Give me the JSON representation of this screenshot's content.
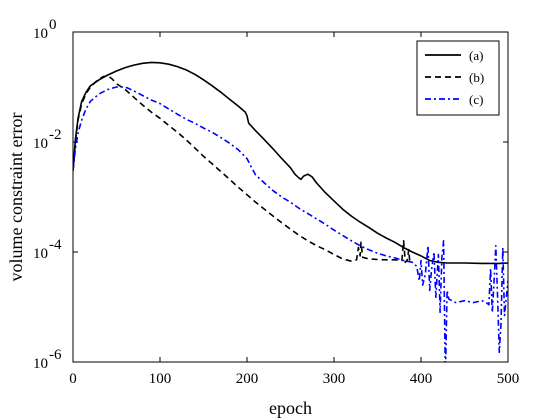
{
  "chart_data": {
    "type": "line",
    "xlabel": "epoch",
    "ylabel": "volume constraint error",
    "xscale": "linear",
    "yscale": "log",
    "xlim": [
      0,
      500
    ],
    "ylim": [
      1e-06,
      1
    ],
    "xticks": [
      0,
      100,
      200,
      300,
      400,
      500
    ],
    "yticks": [
      {
        "value": 1e-06,
        "base": "10",
        "exp": "-6"
      },
      {
        "value": 0.0001,
        "base": "10",
        "exp": "-4"
      },
      {
        "value": 0.01,
        "base": "10",
        "exp": "-2"
      },
      {
        "value": 1,
        "base": "10",
        "exp": "0"
      }
    ],
    "grid": false,
    "legend_position": "top-right",
    "series": [
      {
        "name": "(a)",
        "color": "#000000",
        "dash": "solid",
        "points": [
          [
            0,
            0.003
          ],
          [
            3,
            0.012
          ],
          [
            6,
            0.028
          ],
          [
            10,
            0.055
          ],
          [
            15,
            0.08
          ],
          [
            20,
            0.105
          ],
          [
            30,
            0.135
          ],
          [
            40,
            0.165
          ],
          [
            50,
            0.195
          ],
          [
            60,
            0.225
          ],
          [
            70,
            0.25
          ],
          [
            80,
            0.27
          ],
          [
            90,
            0.28
          ],
          [
            100,
            0.275
          ],
          [
            110,
            0.26
          ],
          [
            120,
            0.235
          ],
          [
            130,
            0.205
          ],
          [
            140,
            0.17
          ],
          [
            150,
            0.135
          ],
          [
            160,
            0.105
          ],
          [
            170,
            0.08
          ],
          [
            180,
            0.06
          ],
          [
            190,
            0.045
          ],
          [
            198,
            0.035
          ],
          [
            200,
            0.03
          ],
          [
            202,
            0.022
          ],
          [
            210,
            0.016
          ],
          [
            220,
            0.011
          ],
          [
            230,
            0.0075
          ],
          [
            240,
            0.005
          ],
          [
            250,
            0.0034
          ],
          [
            255,
            0.0026
          ],
          [
            260,
            0.0022
          ],
          [
            262,
            0.0021
          ],
          [
            265,
            0.0024
          ],
          [
            270,
            0.0026
          ],
          [
            275,
            0.0023
          ],
          [
            280,
            0.0018
          ],
          [
            290,
            0.0012
          ],
          [
            300,
            0.00085
          ],
          [
            310,
            0.0006
          ],
          [
            320,
            0.00045
          ],
          [
            330,
            0.00035
          ],
          [
            340,
            0.00028
          ],
          [
            350,
            0.00022
          ],
          [
            360,
            0.00018
          ],
          [
            370,
            0.00015
          ],
          [
            380,
            0.00012
          ],
          [
            390,
            0.0001
          ],
          [
            400,
            8.5e-05
          ],
          [
            410,
            7e-05
          ],
          [
            420,
            6.5e-05
          ],
          [
            430,
            6.3e-05
          ],
          [
            450,
            6.3e-05
          ],
          [
            470,
            6.2e-05
          ],
          [
            490,
            6.2e-05
          ],
          [
            500,
            6.3e-05
          ]
        ]
      },
      {
        "name": "(b)",
        "color": "#000000",
        "dash": "dashed",
        "points": [
          [
            0,
            0.003
          ],
          [
            3,
            0.011
          ],
          [
            6,
            0.026
          ],
          [
            10,
            0.05
          ],
          [
            15,
            0.075
          ],
          [
            20,
            0.1
          ],
          [
            25,
            0.12
          ],
          [
            30,
            0.14
          ],
          [
            35,
            0.155
          ],
          [
            40,
            0.16
          ],
          [
            45,
            0.14
          ],
          [
            50,
            0.115
          ],
          [
            60,
            0.09
          ],
          [
            70,
            0.065
          ],
          [
            80,
            0.047
          ],
          [
            90,
            0.035
          ],
          [
            100,
            0.027
          ],
          [
            110,
            0.02
          ],
          [
            120,
            0.015
          ],
          [
            130,
            0.011
          ],
          [
            140,
            0.0078
          ],
          [
            150,
            0.0055
          ],
          [
            160,
            0.004
          ],
          [
            170,
            0.0029
          ],
          [
            180,
            0.0021
          ],
          [
            190,
            0.0015
          ],
          [
            200,
            0.0011
          ],
          [
            210,
            0.0008
          ],
          [
            220,
            0.0006
          ],
          [
            230,
            0.00045
          ],
          [
            240,
            0.00034
          ],
          [
            250,
            0.00026
          ],
          [
            260,
            0.0002
          ],
          [
            270,
            0.00016
          ],
          [
            280,
            0.00013
          ],
          [
            290,
            0.00011
          ],
          [
            300,
            9e-05
          ],
          [
            310,
            7.5e-05
          ],
          [
            320,
            6.8e-05
          ],
          [
            326,
            7.2e-05
          ],
          [
            328,
            0.00012
          ],
          [
            330,
            8.5e-05
          ],
          [
            331,
            0.00015
          ],
          [
            333,
            8e-05
          ],
          [
            340,
            7.5e-05
          ],
          [
            350,
            7.3e-05
          ],
          [
            360,
            7.2e-05
          ],
          [
            370,
            7.2e-05
          ],
          [
            378,
            7e-05
          ],
          [
            380,
            0.00016
          ],
          [
            382,
            6.5e-05
          ],
          [
            384,
            7e-05
          ],
          [
            386,
            0.00011
          ],
          [
            387,
            6.8e-05
          ]
        ]
      },
      {
        "name": "(c)",
        "color": "#0000ff",
        "dash": "dashdot",
        "points": [
          [
            0,
            0.003
          ],
          [
            3,
            0.008
          ],
          [
            6,
            0.015
          ],
          [
            10,
            0.025
          ],
          [
            15,
            0.04
          ],
          [
            20,
            0.055
          ],
          [
            30,
            0.075
          ],
          [
            40,
            0.09
          ],
          [
            50,
            0.1
          ],
          [
            60,
            0.1
          ],
          [
            70,
            0.085
          ],
          [
            80,
            0.07
          ],
          [
            90,
            0.058
          ],
          [
            100,
            0.05
          ],
          [
            110,
            0.04
          ],
          [
            120,
            0.032
          ],
          [
            130,
            0.026
          ],
          [
            140,
            0.022
          ],
          [
            150,
            0.018
          ],
          [
            160,
            0.015
          ],
          [
            170,
            0.012
          ],
          [
            180,
            0.0095
          ],
          [
            190,
            0.0072
          ],
          [
            195,
            0.006
          ],
          [
            200,
            0.005
          ],
          [
            205,
            0.0035
          ],
          [
            210,
            0.0025
          ],
          [
            220,
            0.0018
          ],
          [
            230,
            0.0013
          ],
          [
            240,
            0.001
          ],
          [
            250,
            0.0008
          ],
          [
            260,
            0.00062
          ],
          [
            270,
            0.0005
          ],
          [
            280,
            0.0004
          ],
          [
            290,
            0.00032
          ],
          [
            300,
            0.00025
          ],
          [
            310,
            0.0002
          ],
          [
            320,
            0.00016
          ],
          [
            330,
            0.00013
          ],
          [
            340,
            0.00011
          ],
          [
            350,
            9.5e-05
          ],
          [
            360,
            8.5e-05
          ],
          [
            370,
            7.8e-05
          ],
          [
            380,
            7e-05
          ],
          [
            390,
            6.5e-05
          ],
          [
            395,
            5.5e-05
          ],
          [
            398,
            3e-05
          ],
          [
            400,
            7e-05
          ],
          [
            402,
            2.5e-05
          ],
          [
            405,
            4e-05
          ],
          [
            408,
            0.00013
          ],
          [
            410,
            2e-05
          ],
          [
            412,
            4.5e-05
          ],
          [
            415,
            0.0001
          ],
          [
            417,
            1.5e-05
          ],
          [
            420,
            9e-05
          ],
          [
            422,
            8e-06
          ],
          [
            424,
            8e-05
          ],
          [
            426,
            0.00016
          ],
          [
            428,
            5e-07
          ],
          [
            430,
            2e-05
          ],
          [
            432,
            1.4e-05
          ],
          [
            440,
            1.2e-05
          ],
          [
            450,
            1.3e-05
          ],
          [
            460,
            1.2e-05
          ],
          [
            470,
            1.3e-05
          ],
          [
            475,
            1.2e-05
          ],
          [
            478,
            1.1e-05
          ],
          [
            480,
            5e-05
          ],
          [
            482,
            8e-06
          ],
          [
            484,
            3e-05
          ],
          [
            486,
            0.00013
          ],
          [
            488,
            1.5e-05
          ],
          [
            490,
            1.5e-06
          ],
          [
            492,
            5e-06
          ],
          [
            494,
            0.00012
          ],
          [
            496,
            7e-06
          ],
          [
            498,
            1.5e-05
          ],
          [
            500,
            3e-05
          ]
        ]
      }
    ]
  }
}
